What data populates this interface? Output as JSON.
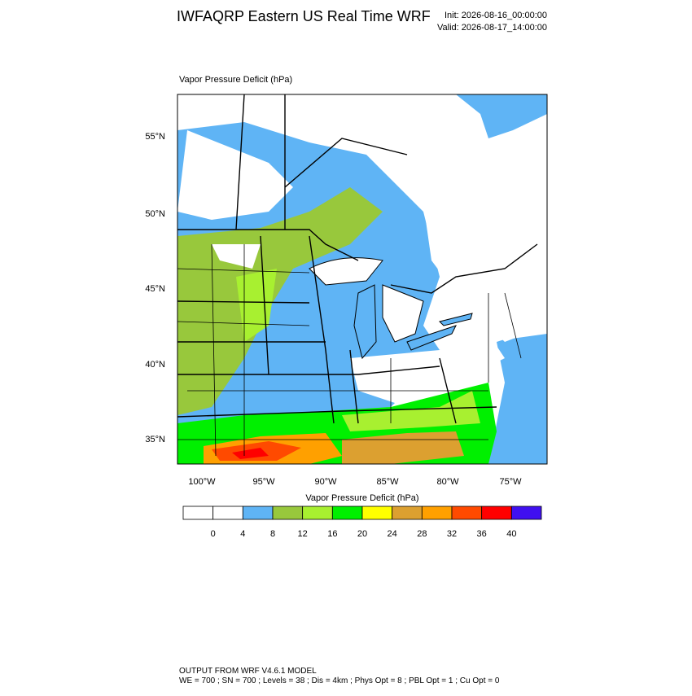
{
  "header": {
    "title": "IWFAQRP Eastern US Real Time WRF",
    "init": "Init: 2026-08-16_00:00:00",
    "valid": "Valid: 2026-08-17_14:00:00"
  },
  "map": {
    "field_label": "Vapor Pressure Deficit   (hPa)",
    "lat_labels": [
      "55°N",
      "50°N",
      "45°N",
      "40°N",
      "35°N"
    ],
    "lon_labels": [
      "100°W",
      "95°W",
      "90°W",
      "85°W",
      "80°W",
      "75°W"
    ]
  },
  "colorbar": {
    "title": "Vapor Pressure Deficit  (hPa)",
    "colors": [
      "#ffffff",
      "#ffffff",
      "#5fb4f5",
      "#98c83c",
      "#a8f030",
      "#00f000",
      "#ffff00",
      "#dca030",
      "#ffa000",
      "#ff4a00",
      "#ff0000",
      "#4010f0"
    ],
    "levels": [
      0,
      4,
      8,
      12,
      16,
      20,
      24,
      28,
      32,
      36,
      40
    ]
  },
  "footer": {
    "line1": "OUTPUT FROM WRF V4.6.1 MODEL",
    "line2": "WE = 700 ; SN = 700 ; Levels = 38 ; Dis = 4km ; Phys Opt = 8 ; PBL Opt = 1 ; Cu Opt = 0"
  }
}
